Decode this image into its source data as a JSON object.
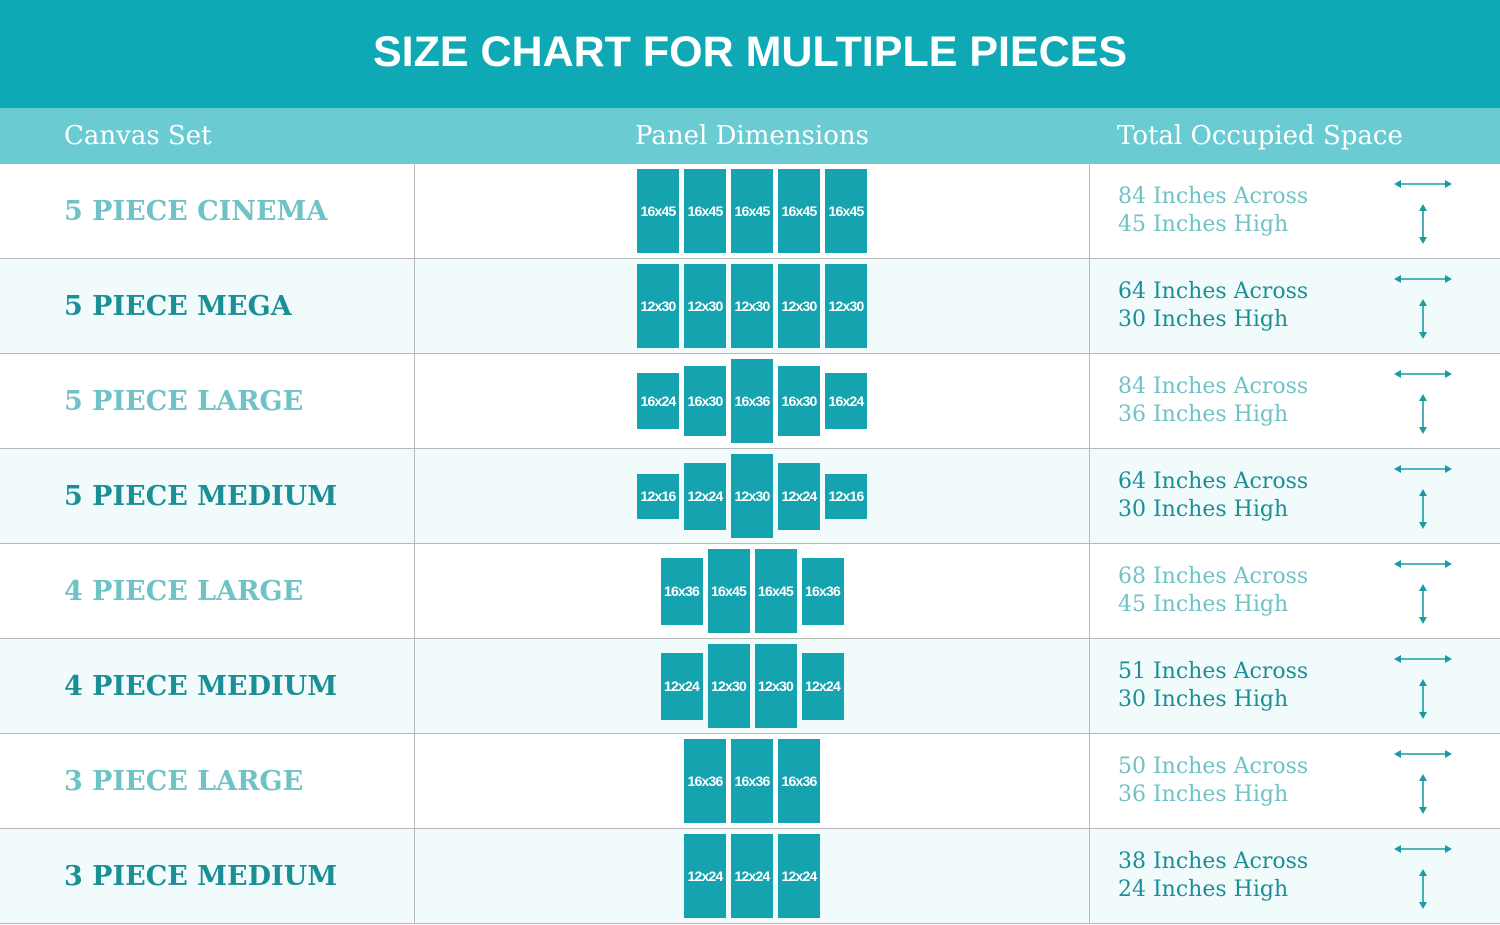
{
  "title": "SIZE CHART FOR MULTIPLE PIECES",
  "headers": {
    "set": "Canvas Set",
    "panels": "Panel Dimensions",
    "space": "Total Occupied Space"
  },
  "colors": {
    "banner": "#0fa8b5",
    "header": "#6acbd3",
    "panel": "#16a3b0",
    "text_light": "#6fc2c6",
    "text_dark": "#1b8f96"
  },
  "icons": [
    "horizontal-arrow-icon",
    "vertical-arrow-icon"
  ],
  "rows": [
    {
      "name": "5 PIECE CINEMA",
      "panels": [
        "16x45",
        "16x45",
        "16x45",
        "16x45",
        "16x45"
      ],
      "across": "84 Inches Across",
      "high": "45 Inches High"
    },
    {
      "name": "5 PIECE MEGA",
      "panels": [
        "12x30",
        "12x30",
        "12x30",
        "12x30",
        "12x30"
      ],
      "across": "64 Inches Across",
      "high": "30 Inches High"
    },
    {
      "name": "5 PIECE LARGE",
      "panels": [
        "16x24",
        "16x30",
        "16x36",
        "16x30",
        "16x24"
      ],
      "across": "84 Inches Across",
      "high": "36 Inches High"
    },
    {
      "name": "5 PIECE MEDIUM",
      "panels": [
        "12x16",
        "12x24",
        "12x30",
        "12x24",
        "12x16"
      ],
      "across": "64 Inches Across",
      "high": "30 Inches High"
    },
    {
      "name": "4 PIECE LARGE",
      "panels": [
        "16x36",
        "16x45",
        "16x45",
        "16x36"
      ],
      "across": "68 Inches Across",
      "high": "45 Inches High"
    },
    {
      "name": "4 PIECE MEDIUM",
      "panels": [
        "12x24",
        "12x30",
        "12x30",
        "12x24"
      ],
      "across": "51 Inches Across",
      "high": "30 Inches High"
    },
    {
      "name": "3 PIECE LARGE",
      "panels": [
        "16x36",
        "16x36",
        "16x36"
      ],
      "across": "50 Inches Across",
      "high": "36 Inches High"
    },
    {
      "name": "3 PIECE MEDIUM",
      "panels": [
        "12x24",
        "12x24",
        "12x24"
      ],
      "across": "38 Inches Across",
      "high": "24 Inches High"
    }
  ]
}
